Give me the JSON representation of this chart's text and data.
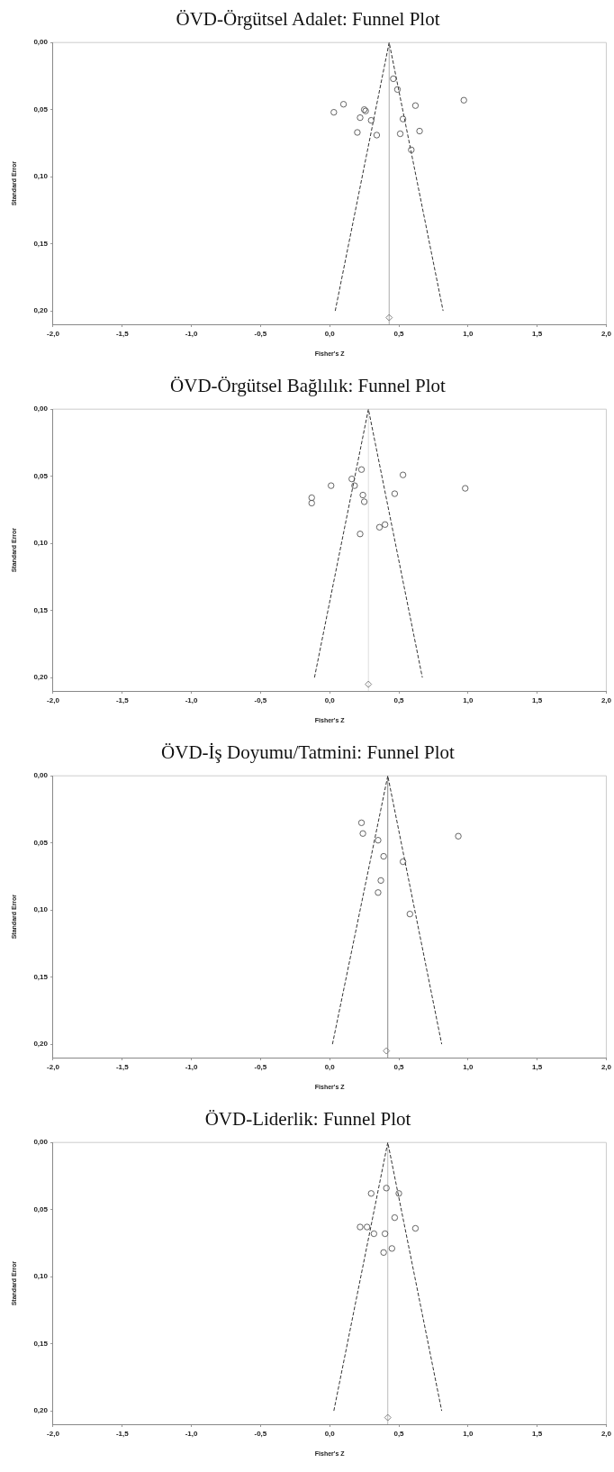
{
  "chart_data": [
    {
      "type": "scatter",
      "title": "ÖVD-Örgütsel Adalet: Funnel Plot",
      "xlabel": "Fisher's Z",
      "ylabel": "Standard Error",
      "xlim": [
        -2,
        2
      ],
      "ylim": [
        0.21,
        0
      ],
      "grid": false,
      "marker": "circle",
      "xticks": [
        {
          "value": -2,
          "label": "-2,0"
        },
        {
          "value": -1.5,
          "label": "-1,5"
        },
        {
          "value": -1,
          "label": "-1,0"
        },
        {
          "value": -0.5,
          "label": "-0,5"
        },
        {
          "value": 0,
          "label": "0,0"
        },
        {
          "value": 0.5,
          "label": "0,5"
        },
        {
          "value": 1,
          "label": "1,0"
        },
        {
          "value": 1.5,
          "label": "1,5"
        },
        {
          "value": 2,
          "label": "2,0"
        }
      ],
      "yticks": [
        {
          "value": 0,
          "label": "0,00"
        },
        {
          "value": 0.05,
          "label": "0,05"
        },
        {
          "value": 0.1,
          "label": "0,10"
        },
        {
          "value": 0.15,
          "label": "0,15"
        },
        {
          "value": 0.2,
          "label": "0,20"
        }
      ],
      "ref_lines": [
        {
          "axis": "x",
          "value": 0.43,
          "color": "#aaaaaa"
        }
      ],
      "series": [
        {
          "type": "scatter",
          "color": "#555555",
          "x": [
            0.46,
            0.49,
            0.1,
            0.03,
            0.25,
            0.26,
            0.22,
            0.3,
            0.2,
            0.34,
            0.62,
            0.53,
            0.51,
            0.65,
            0.59,
            0.97
          ],
          "values": [
            0.027,
            0.035,
            0.046,
            0.052,
            0.05,
            0.051,
            0.056,
            0.058,
            0.067,
            0.069,
            0.047,
            0.057,
            0.068,
            0.066,
            0.08,
            0.043
          ]
        },
        {
          "type": "line",
          "color": "#333333",
          "marker": "none",
          "line_style": "dashed",
          "x": [
            0.04,
            0.43,
            0.82
          ],
          "values": [
            0.2,
            0,
            0.2
          ]
        },
        {
          "type": "scatter",
          "color": "#777777",
          "marker": "diamond",
          "x": [
            0.43
          ],
          "values": [
            0.205
          ]
        }
      ]
    },
    {
      "type": "scatter",
      "title": "ÖVD-Örgütsel Bağlılık: Funnel Plot",
      "xlabel": "Fisher's Z",
      "ylabel": "Standard Error",
      "xlim": [
        -2,
        2
      ],
      "ylim": [
        0.21,
        0
      ],
      "grid": false,
      "marker": "circle",
      "xticks": [
        {
          "value": -2,
          "label": "-2,0"
        },
        {
          "value": -1.5,
          "label": "-1,5"
        },
        {
          "value": -1,
          "label": "-1,0"
        },
        {
          "value": -0.5,
          "label": "-0,5"
        },
        {
          "value": 0,
          "label": "0,0"
        },
        {
          "value": 0.5,
          "label": "0,5"
        },
        {
          "value": 1,
          "label": "1,0"
        },
        {
          "value": 1.5,
          "label": "1,5"
        },
        {
          "value": 2,
          "label": "2,0"
        }
      ],
      "yticks": [
        {
          "value": 0,
          "label": "0,00"
        },
        {
          "value": 0.05,
          "label": "0,05"
        },
        {
          "value": 0.1,
          "label": "0,10"
        },
        {
          "value": 0.15,
          "label": "0,15"
        },
        {
          "value": 0.2,
          "label": "0,20"
        }
      ],
      "ref_lines": [
        {
          "axis": "x",
          "value": 0.28,
          "color": "#dddddd"
        }
      ],
      "series": [
        {
          "type": "scatter",
          "color": "#555555",
          "x": [
            0.23,
            0.53,
            0.16,
            0.18,
            0.01,
            0.98,
            0.47,
            0.24,
            0.25,
            -0.13,
            -0.13,
            0.4,
            0.36,
            0.22
          ],
          "values": [
            0.045,
            0.049,
            0.052,
            0.057,
            0.057,
            0.059,
            0.063,
            0.064,
            0.069,
            0.066,
            0.07,
            0.086,
            0.088,
            0.093
          ]
        },
        {
          "type": "line",
          "color": "#333333",
          "marker": "none",
          "line_style": "dashed",
          "x": [
            -0.11,
            0.28,
            0.67
          ],
          "values": [
            0.2,
            0,
            0.2
          ]
        },
        {
          "type": "scatter",
          "color": "#777777",
          "marker": "diamond",
          "x": [
            0.28
          ],
          "values": [
            0.205
          ]
        }
      ]
    },
    {
      "type": "scatter",
      "title": "ÖVD-İş Doyumu/Tatmini: Funnel Plot",
      "xlabel": "Fisher's Z",
      "ylabel": "Standard Error",
      "xlim": [
        -2,
        2
      ],
      "ylim": [
        0.21,
        0
      ],
      "grid": false,
      "marker": "circle",
      "xticks": [
        {
          "value": -2,
          "label": "-2,0"
        },
        {
          "value": -1.5,
          "label": "-1,5"
        },
        {
          "value": -1,
          "label": "-1,0"
        },
        {
          "value": -0.5,
          "label": "-0,5"
        },
        {
          "value": 0,
          "label": "0,0"
        },
        {
          "value": 0.5,
          "label": "0,5"
        },
        {
          "value": 1,
          "label": "1,0"
        },
        {
          "value": 1.5,
          "label": "1,5"
        },
        {
          "value": 2,
          "label": "2,0"
        }
      ],
      "yticks": [
        {
          "value": 0,
          "label": "0,00"
        },
        {
          "value": 0.05,
          "label": "0,05"
        },
        {
          "value": 0.1,
          "label": "0,10"
        },
        {
          "value": 0.15,
          "label": "0,15"
        },
        {
          "value": 0.2,
          "label": "0,20"
        }
      ],
      "ref_lines": [
        {
          "axis": "x",
          "value": 0.42,
          "color": "#888888"
        }
      ],
      "series": [
        {
          "type": "scatter",
          "color": "#555555",
          "x": [
            0.23,
            0.24,
            0.93,
            0.35,
            0.39,
            0.53,
            0.37,
            0.35,
            0.58
          ],
          "values": [
            0.035,
            0.043,
            0.045,
            0.048,
            0.06,
            0.064,
            0.078,
            0.087,
            0.103
          ]
        },
        {
          "type": "line",
          "color": "#333333",
          "marker": "none",
          "line_style": "dashed",
          "x": [
            0.02,
            0.42,
            0.81
          ],
          "values": [
            0.2,
            0,
            0.2
          ]
        },
        {
          "type": "scatter",
          "color": "#777777",
          "marker": "diamond",
          "x": [
            0.41
          ],
          "values": [
            0.205
          ]
        }
      ]
    },
    {
      "type": "scatter",
      "title": "ÖVD-Liderlik: Funnel Plot",
      "xlabel": "Fisher's Z",
      "ylabel": "Standard Error",
      "xlim": [
        -2,
        2
      ],
      "ylim": [
        0.21,
        0
      ],
      "grid": false,
      "marker": "circle",
      "xticks": [
        {
          "value": -2,
          "label": "-2,0"
        },
        {
          "value": -1.5,
          "label": "-1,5"
        },
        {
          "value": -1,
          "label": "-1,0"
        },
        {
          "value": -0.5,
          "label": "-0,5"
        },
        {
          "value": 0,
          "label": "0,0"
        },
        {
          "value": 0.5,
          "label": "0,5"
        },
        {
          "value": 1,
          "label": "1,0"
        },
        {
          "value": 1.5,
          "label": "1,5"
        },
        {
          "value": 2,
          "label": "2,0"
        }
      ],
      "yticks": [
        {
          "value": 0,
          "label": "0,00"
        },
        {
          "value": 0.05,
          "label": "0,05"
        },
        {
          "value": 0.1,
          "label": "0,10"
        },
        {
          "value": 0.15,
          "label": "0,15"
        },
        {
          "value": 0.2,
          "label": "0,20"
        }
      ],
      "ref_lines": [
        {
          "axis": "x",
          "value": 0.42,
          "color": "#bbbbbb"
        }
      ],
      "series": [
        {
          "type": "scatter",
          "color": "#555555",
          "x": [
            0.41,
            0.3,
            0.5,
            0.47,
            0.22,
            0.27,
            0.62,
            0.32,
            0.4,
            0.45,
            0.39
          ],
          "values": [
            0.034,
            0.038,
            0.038,
            0.056,
            0.063,
            0.063,
            0.064,
            0.068,
            0.068,
            0.079,
            0.082
          ]
        },
        {
          "type": "line",
          "color": "#333333",
          "marker": "none",
          "line_style": "dashed",
          "x": [
            0.03,
            0.42,
            0.81
          ],
          "values": [
            0.2,
            0,
            0.2
          ]
        },
        {
          "type": "scatter",
          "color": "#777777",
          "marker": "diamond",
          "x": [
            0.42
          ],
          "values": [
            0.205
          ]
        }
      ]
    }
  ]
}
